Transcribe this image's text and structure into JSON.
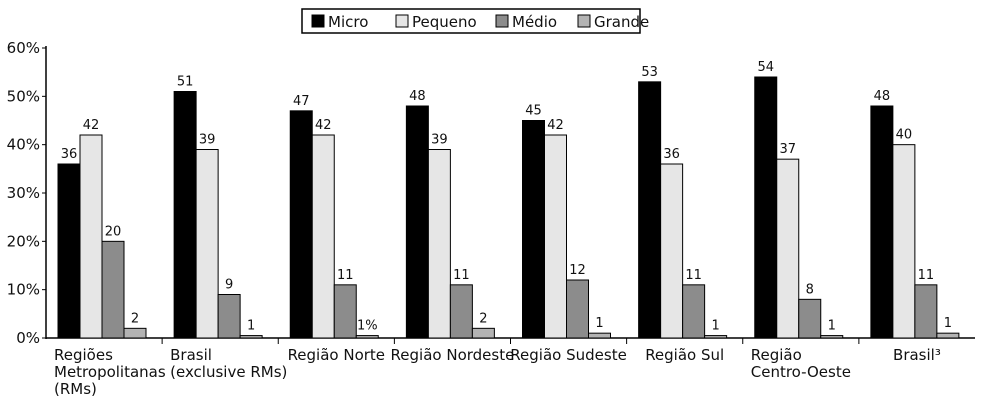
{
  "chart_data": {
    "type": "bar",
    "categories": [
      [
        "Regiões",
        "Metropolitanas",
        "(RMs)"
      ],
      [
        "Brasil",
        "(exclusive RMs)"
      ],
      [
        "Região Norte"
      ],
      [
        "Região Nordeste"
      ],
      [
        "Região Sudeste"
      ],
      [
        "Região Sul"
      ],
      [
        "Região",
        "Centro-Oeste"
      ],
      [
        "Brasil³"
      ]
    ],
    "series": [
      {
        "name": "Micro",
        "color": "#000000",
        "values": [
          36,
          51,
          47,
          48,
          45,
          53,
          54,
          48
        ]
      },
      {
        "name": "Pequeno",
        "color": "#e6e6e6",
        "values": [
          42,
          39,
          42,
          39,
          42,
          36,
          37,
          40
        ]
      },
      {
        "name": "Médio",
        "color": "#8c8c8c",
        "values": [
          20,
          9,
          11,
          11,
          12,
          11,
          8,
          11
        ]
      },
      {
        "name": "Grande",
        "color": "#b3b3b3",
        "values": [
          2,
          0.5,
          0.5,
          2,
          1,
          0.5,
          0.5,
          1
        ]
      }
    ],
    "value_labels": [
      [
        "36",
        "42",
        "20",
        "2"
      ],
      [
        "51",
        "39",
        "9",
        "1"
      ],
      [
        "47",
        "42",
        "11",
        "1%"
      ],
      [
        "48",
        "39",
        "11",
        "2"
      ],
      [
        "45",
        "42",
        "12",
        "1"
      ],
      [
        "53",
        "36",
        "11",
        "1"
      ],
      [
        "54",
        "37",
        "8",
        "1"
      ],
      [
        "48",
        "40",
        "11",
        "1"
      ]
    ],
    "y_ticks": [
      "0%",
      "10%",
      "20%",
      "30%",
      "40%",
      "50%",
      "60%"
    ],
    "ylim": [
      0,
      60
    ],
    "grid": false,
    "legend_position": "top-center"
  }
}
